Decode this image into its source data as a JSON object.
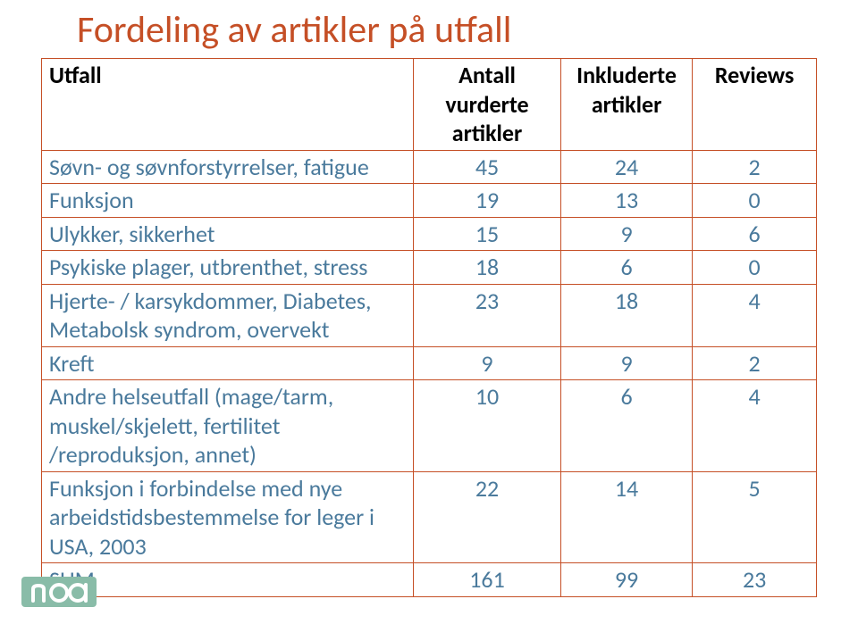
{
  "title": {
    "text": "Fordeling av artikler på utfall",
    "color": "#c54f26",
    "fontsize": 42
  },
  "table": {
    "border_color": "#c54f26",
    "header_color": "#000000",
    "body_color": "#4a7a9c",
    "fontsize_header": 26,
    "fontsize_body": 26,
    "headers": {
      "c0": "Utfall",
      "c1": "Antall vurderte\nartikler",
      "c2": "Inkluderte\nartikler",
      "c3": "Reviews"
    },
    "rows": [
      {
        "label": "Søvn- og søvnforstyrrelser, fatigue",
        "v1": "45",
        "v2": "24",
        "v3": "2"
      },
      {
        "label": "Funksjon",
        "v1": "19",
        "v2": "13",
        "v3": "0"
      },
      {
        "label": "Ulykker, sikkerhet",
        "v1": "15",
        "v2": "9",
        "v3": "6"
      },
      {
        "label": "Psykiske plager, utbrenthet, stress",
        "v1": "18",
        "v2": "6",
        "v3": "0"
      },
      {
        "label": "Hjerte- / karsykdommer, Diabetes, Metabolsk syndrom, overvekt",
        "v1": "23",
        "v2": "18",
        "v3": "4"
      },
      {
        "label": "Kreft",
        "v1": "9",
        "v2": "9",
        "v3": "2"
      },
      {
        "label": "Andre helseutfall (mage/tarm, muskel/skjelett, fertilitet /reproduksjon, annet)",
        "v1": "10",
        "v2": "6",
        "v3": "4"
      },
      {
        "label": "Funksjon i forbindelse med nye arbeidstidsbestemmelse for leger i USA, 2003",
        "v1": "22",
        "v2": "14",
        "v3": "5"
      },
      {
        "label": "SUM",
        "v1": "161",
        "v2": "99",
        "v3": "23"
      }
    ]
  },
  "logo": {
    "bg_color": "#89bca8",
    "fg_color": "#ffffff",
    "width": 84,
    "height": 34
  }
}
